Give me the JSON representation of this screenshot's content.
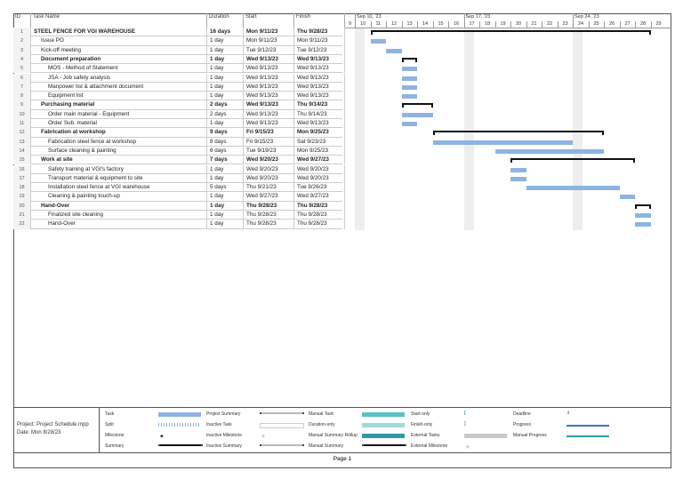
{
  "columns": {
    "id": "ID",
    "name": "Task Name",
    "duration": "Duration",
    "start": "Start",
    "finish": "Finish"
  },
  "timeline": {
    "weeks": [
      "Sep 10, '23",
      "Sep 17, '23",
      "Sep 24, '23"
    ],
    "days": [
      "9",
      "10",
      "11",
      "12",
      "13",
      "14",
      "15",
      "16",
      "17",
      "18",
      "19",
      "20",
      "21",
      "22",
      "23",
      "24",
      "25",
      "26",
      "27",
      "28",
      "29"
    ]
  },
  "tasks": [
    {
      "id": "1",
      "name": "STEEL FENCE FOR VGI WAREHOUSE",
      "duration": "16 days",
      "start": "Mon 9/11/23",
      "finish": "Thu 9/28/23",
      "level": 0,
      "summary": true,
      "s": 11,
      "e": 28
    },
    {
      "id": "2",
      "name": "Issue PO",
      "duration": "1 day",
      "start": "Mon 9/11/23",
      "finish": "Mon 9/11/23",
      "level": 1,
      "summary": false,
      "s": 11,
      "e": 11
    },
    {
      "id": "3",
      "name": "Kick-off meeting",
      "duration": "1 day",
      "start": "Tue 9/12/23",
      "finish": "Tue 9/12/23",
      "level": 1,
      "summary": false,
      "s": 12,
      "e": 12
    },
    {
      "id": "4",
      "name": "Document preparation",
      "duration": "1 day",
      "start": "Wed 9/13/23",
      "finish": "Wed 9/13/23",
      "level": 1,
      "summary": true,
      "s": 13,
      "e": 13
    },
    {
      "id": "5",
      "name": "MOS - Method of Statement",
      "duration": "1 day",
      "start": "Wed 9/13/23",
      "finish": "Wed 9/13/23",
      "level": 2,
      "summary": false,
      "s": 13,
      "e": 13
    },
    {
      "id": "6",
      "name": "JSA - Job safety analysis",
      "duration": "1 day",
      "start": "Wed 9/13/23",
      "finish": "Wed 9/13/23",
      "level": 2,
      "summary": false,
      "s": 13,
      "e": 13
    },
    {
      "id": "7",
      "name": "Manpower list & attachment document",
      "duration": "1 day",
      "start": "Wed 9/13/23",
      "finish": "Wed 9/13/23",
      "level": 2,
      "summary": false,
      "s": 13,
      "e": 13
    },
    {
      "id": "8",
      "name": "Equipment list",
      "duration": "1 day",
      "start": "Wed 9/13/23",
      "finish": "Wed 9/13/23",
      "level": 2,
      "summary": false,
      "s": 13,
      "e": 13
    },
    {
      "id": "9",
      "name": "Purchasing material",
      "duration": "2 days",
      "start": "Wed 9/13/23",
      "finish": "Thu 9/14/23",
      "level": 1,
      "summary": true,
      "s": 13,
      "e": 14
    },
    {
      "id": "10",
      "name": "Order main material - Equipment",
      "duration": "2 days",
      "start": "Wed 9/13/23",
      "finish": "Thu 9/14/23",
      "level": 2,
      "summary": false,
      "s": 13,
      "e": 14
    },
    {
      "id": "11",
      "name": "Order Sub. material",
      "duration": "1 day",
      "start": "Wed 9/13/23",
      "finish": "Wed 9/13/23",
      "level": 2,
      "summary": false,
      "s": 13,
      "e": 13
    },
    {
      "id": "12",
      "name": "Fabrication at workshop",
      "duration": "9 days",
      "start": "Fri 9/15/23",
      "finish": "Mon 9/25/23",
      "level": 1,
      "summary": true,
      "s": 15,
      "e": 25
    },
    {
      "id": "13",
      "name": "Fabrication steel fence at workshop",
      "duration": "8 days",
      "start": "Fri 9/15/23",
      "finish": "Sat 9/23/23",
      "level": 2,
      "summary": false,
      "s": 15,
      "e": 23
    },
    {
      "id": "14",
      "name": "Surface cleaning & painting",
      "duration": "6 days",
      "start": "Tue 9/19/23",
      "finish": "Mon 9/25/23",
      "level": 2,
      "summary": false,
      "s": 19,
      "e": 25
    },
    {
      "id": "15",
      "name": "Work at site",
      "duration": "7 days",
      "start": "Wed 9/20/23",
      "finish": "Wed 9/27/23",
      "level": 1,
      "summary": true,
      "s": 20,
      "e": 27
    },
    {
      "id": "16",
      "name": "Safety training at VGI's factory",
      "duration": "1 day",
      "start": "Wed 9/20/23",
      "finish": "Wed 9/20/23",
      "level": 2,
      "summary": false,
      "s": 20,
      "e": 20
    },
    {
      "id": "17",
      "name": "Transport material & equipment to site",
      "duration": "1 day",
      "start": "Wed 9/20/23",
      "finish": "Wed 9/20/23",
      "level": 2,
      "summary": false,
      "s": 20,
      "e": 20
    },
    {
      "id": "18",
      "name": "Installation steel fence at VGI warehouse",
      "duration": "5 days",
      "start": "Thu 9/21/23",
      "finish": "Tue 9/26/23",
      "level": 2,
      "summary": false,
      "s": 21,
      "e": 26
    },
    {
      "id": "19",
      "name": "Cleaning & painting touch-up",
      "duration": "1 day",
      "start": "Wed 9/27/23",
      "finish": "Wed 9/27/23",
      "level": 2,
      "summary": false,
      "s": 27,
      "e": 27
    },
    {
      "id": "20",
      "name": "Hand-Over",
      "duration": "1 day",
      "start": "Thu 9/28/23",
      "finish": "Thu 9/28/23",
      "level": 1,
      "summary": true,
      "s": 28,
      "e": 28
    },
    {
      "id": "21",
      "name": "Finalized site cleaning",
      "duration": "1 day",
      "start": "Thu 9/28/23",
      "finish": "Thu 9/28/23",
      "level": 2,
      "summary": false,
      "s": 28,
      "e": 28
    },
    {
      "id": "22",
      "name": "Hand-Over",
      "duration": "1 day",
      "start": "Thu 9/28/23",
      "finish": "Thu 9/28/23",
      "level": 2,
      "summary": false,
      "s": 28,
      "e": 28
    }
  ],
  "legend": {
    "project": "Project: Project Schedule.mpp",
    "date": "Date: Mon 8/28/23",
    "items": [
      "Task",
      "Split",
      "Milestone",
      "Summary",
      "Project Summary",
      "Inactive Task",
      "Inactive Milestone",
      "Inactive Summary",
      "Manual Task",
      "Duration-only",
      "Manual Summary Rollup",
      "Manual Summary",
      "Start-only",
      "Finish-only",
      "External Tasks",
      "External Milestone",
      "Deadline",
      "Progress",
      "Manual Progress"
    ]
  },
  "footer": "Page 1",
  "colors": {
    "task": "#8db4e2",
    "summary": "#111111",
    "manual": "#5bbfc6"
  }
}
